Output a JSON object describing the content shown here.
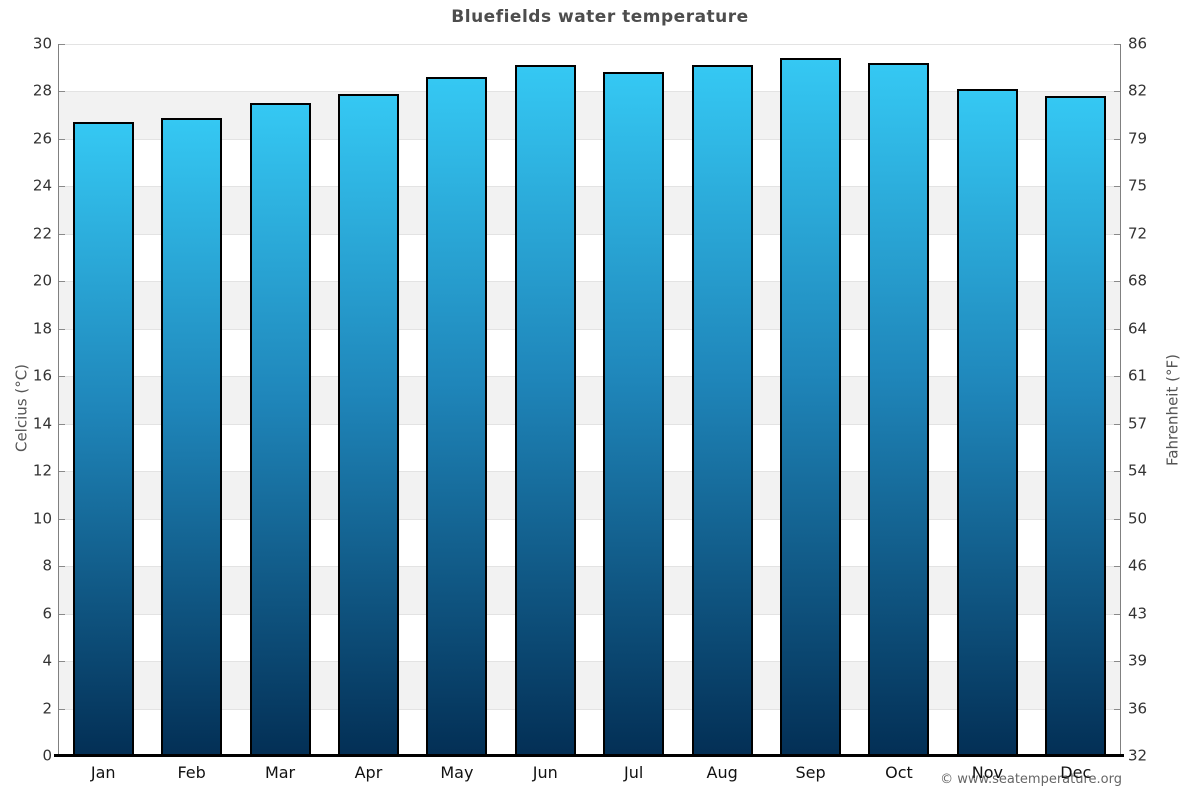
{
  "chart_data": {
    "type": "bar",
    "title": "Bluefields water temperature",
    "categories": [
      "Jan",
      "Feb",
      "Mar",
      "Apr",
      "May",
      "Jun",
      "Jul",
      "Aug",
      "Sep",
      "Oct",
      "Nov",
      "Dec"
    ],
    "values": [
      26.7,
      26.9,
      27.5,
      27.9,
      28.6,
      29.1,
      28.8,
      29.1,
      29.4,
      29.2,
      28.1,
      27.8
    ],
    "unit": "°C",
    "ylabel_left": "Celcius (°C)",
    "ylabel_right": "Fahrenheit (°F)",
    "ylim": [
      0,
      30
    ],
    "y_left_ticks": [
      30,
      28,
      26,
      24,
      22,
      20,
      18,
      16,
      14,
      12,
      10,
      8,
      6,
      4,
      2,
      0
    ],
    "y_right_ticks": [
      86,
      82,
      79,
      75,
      72,
      68,
      64,
      61,
      57,
      54,
      50,
      46,
      43,
      39,
      36,
      32
    ],
    "legend": "none",
    "grid": "alternating horizontal bands every 2°C",
    "colors": {
      "bar_gradient_top": "#35c8f3",
      "bar_gradient_mid": "#1f86ba",
      "bar_gradient_bottom": "#032f55",
      "bar_border": "#000000",
      "band_gray": "#f2f2f2",
      "gridline": "#e3e3e3",
      "axis_line": "#808080",
      "x_axis_line": "#000000",
      "title_text": "#4d4d4d"
    }
  },
  "footer": {
    "credit": "© www.seatemperature.org"
  }
}
